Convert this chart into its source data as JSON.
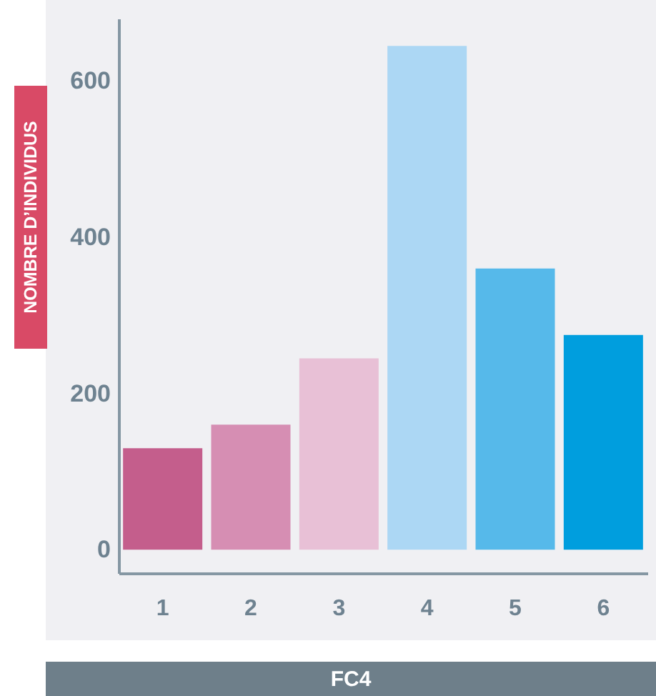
{
  "chart_data": {
    "type": "bar",
    "xlabel": "FC4",
    "ylabel": "NOMBRE D’INDIVIDUS",
    "categories": [
      "1",
      "2",
      "3",
      "4",
      "5",
      "6"
    ],
    "values": [
      130,
      160,
      245,
      645,
      360,
      275
    ],
    "colors": [
      "#c45e8c",
      "#d68eb3",
      "#e8c0d6",
      "#acd7f4",
      "#56b9ea",
      "#009ede"
    ],
    "ylim": [
      -30,
      680
    ],
    "yticks": [
      0,
      200,
      400,
      600
    ]
  }
}
